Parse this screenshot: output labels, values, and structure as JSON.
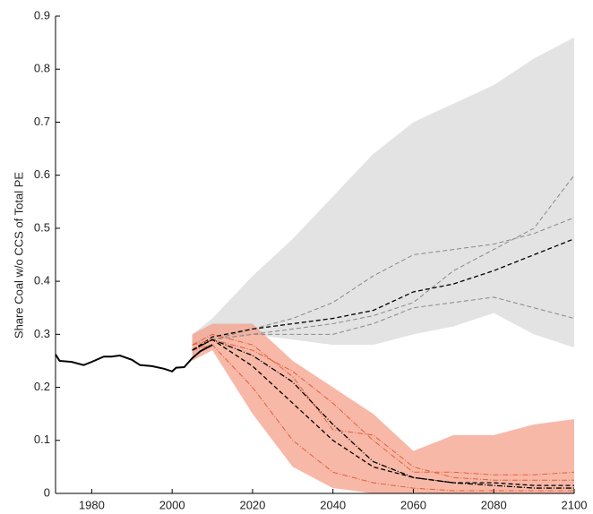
{
  "chart_data": {
    "type": "line",
    "y_label": "Share Coal w/o CCS of Total PE",
    "xlim": [
      1971,
      2100
    ],
    "xticks": [
      1980,
      2000,
      2020,
      2040,
      2060,
      2080,
      2100
    ],
    "ylim": [
      0,
      0.9
    ],
    "yticks": [
      0,
      0.1,
      0.2,
      0.3,
      0.4,
      0.5,
      0.6,
      0.7,
      0.8,
      0.9
    ],
    "grid": false,
    "history": {
      "color": "#000000",
      "x": [
        1971,
        1972,
        1975,
        1978,
        1980,
        1983,
        1985,
        1987,
        1990,
        1992,
        1995,
        1998,
        2000,
        2001,
        2003,
        2005,
        2007,
        2010
      ],
      "values": [
        0.262,
        0.25,
        0.248,
        0.242,
        0.248,
        0.258,
        0.258,
        0.26,
        0.252,
        0.242,
        0.24,
        0.235,
        0.23,
        0.237,
        0.238,
        0.255,
        0.268,
        0.28
      ]
    },
    "x": [
      2005,
      2010,
      2020,
      2030,
      2040,
      2050,
      2060,
      2070,
      2080,
      2090,
      2100
    ],
    "bands": [
      {
        "color": "#d9d9d9",
        "upper": [
          0.3,
          0.33,
          0.41,
          0.48,
          0.56,
          0.64,
          0.7,
          0.735,
          0.77,
          0.82,
          0.86
        ],
        "lower": [
          0.26,
          0.29,
          0.3,
          0.29,
          0.28,
          0.28,
          0.3,
          0.315,
          0.34,
          0.3,
          0.275
        ]
      },
      {
        "color": "#f6a08a",
        "upper": [
          0.3,
          0.32,
          0.32,
          0.25,
          0.2,
          0.15,
          0.08,
          0.11,
          0.11,
          0.13,
          0.14
        ],
        "lower": [
          0.25,
          0.27,
          0.15,
          0.05,
          0.01,
          0,
          0,
          0,
          0,
          0,
          0
        ]
      }
    ],
    "series": [
      {
        "color": "#888888",
        "dash": "5,3",
        "values": [
          0.27,
          0.29,
          0.31,
          0.33,
          0.36,
          0.41,
          0.45,
          0.46,
          0.47,
          0.49,
          0.52
        ]
      },
      {
        "color": "#888888",
        "dash": "5,3",
        "values": [
          0.27,
          0.29,
          0.3,
          0.31,
          0.32,
          0.335,
          0.36,
          0.42,
          0.46,
          0.5,
          0.6
        ]
      },
      {
        "color": "#888888",
        "dash": "5,3",
        "values": [
          0.27,
          0.29,
          0.3,
          0.3,
          0.3,
          0.32,
          0.35,
          0.36,
          0.37,
          0.35,
          0.33
        ]
      },
      {
        "color": "#000000",
        "dash": "5,3",
        "values": [
          0.27,
          0.295,
          0.31,
          0.32,
          0.33,
          0.345,
          0.38,
          0.395,
          0.42,
          0.45,
          0.48
        ]
      },
      {
        "color": "#e0603c",
        "dash": "6,2,1,2",
        "values": [
          0.28,
          0.29,
          0.27,
          0.23,
          0.17,
          0.1,
          0.04,
          0.04,
          0.035,
          0.035,
          0.04
        ]
      },
      {
        "color": "#e0603c",
        "dash": "6,2,1,2",
        "values": [
          0.27,
          0.28,
          0.2,
          0.1,
          0.04,
          0.02,
          0.01,
          0.005,
          0.005,
          0.005,
          0.005
        ]
      },
      {
        "color": "#e0603c",
        "dash": "6,2,1,2",
        "values": [
          0.28,
          0.3,
          0.28,
          0.22,
          0.12,
          0.11,
          0.05,
          0.03,
          0.025,
          0.025,
          0.025
        ]
      },
      {
        "color": "#000000",
        "dash": "5,3",
        "values": [
          0.27,
          0.29,
          0.24,
          0.17,
          0.1,
          0.05,
          0.03,
          0.02,
          0.02,
          0.015,
          0.015
        ]
      },
      {
        "color": "#000000",
        "dash": "6,2,1,2",
        "values": [
          0.27,
          0.29,
          0.26,
          0.21,
          0.13,
          0.06,
          0.03,
          0.02,
          0.015,
          0.01,
          0.01
        ]
      }
    ]
  }
}
